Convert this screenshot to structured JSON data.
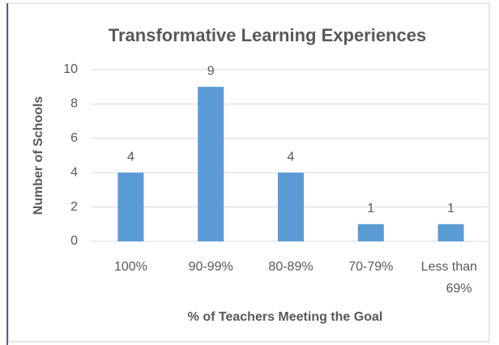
{
  "chart_data": {
    "type": "bar",
    "title": "Transformative Learning Experiences",
    "x_label": "% of Teachers Meeting the Goal",
    "y_label": "Number of Schools",
    "categories": [
      "100%",
      "90-99%",
      "80-89%",
      "70-79%",
      "Less than 69%"
    ],
    "values": [
      4,
      9,
      4,
      1,
      1
    ],
    "color": "#5b9bd5",
    "ylim": [
      0,
      10
    ],
    "yticks": [
      0,
      2,
      4,
      6,
      8,
      10
    ],
    "grid": true
  }
}
